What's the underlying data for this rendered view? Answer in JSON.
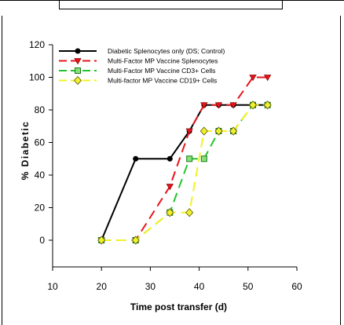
{
  "chart_data": {
    "type": "line",
    "xlabel": "Time post transfer (d)",
    "ylabel": "% Diabetic",
    "xlim": [
      10,
      60
    ],
    "ylim": [
      0,
      120
    ],
    "xticks": [
      10,
      20,
      30,
      40,
      50,
      60
    ],
    "yticks": [
      0,
      20,
      40,
      60,
      80,
      100,
      120
    ],
    "grid": false,
    "legend_position": "top-left",
    "series": [
      {
        "name": "Diabetic Splenocytes only (DS; Control)",
        "color": "#000000",
        "dash": "solid",
        "marker": "circle",
        "marker_fill": "#000000",
        "x": [
          20,
          27,
          34,
          38,
          41,
          44,
          47,
          51,
          54
        ],
        "y": [
          0,
          50,
          50,
          67,
          83,
          83,
          83,
          83,
          83
        ]
      },
      {
        "name": "Multi-Factor MP Vaccine Splenocytes",
        "color": "#e8141c",
        "dash": "dashed",
        "marker": "triangle-down",
        "marker_fill": "#e8141c",
        "x": [
          20,
          27,
          34,
          38,
          41,
          44,
          47,
          51,
          54
        ],
        "y": [
          0,
          0,
          33,
          67,
          83,
          83,
          83,
          100,
          100
        ]
      },
      {
        "name": "Multi-Factor MP Vaccine CD3+ Cells",
        "color": "#22c52a",
        "dash": "dashed",
        "marker": "square",
        "marker_fill": "#86e07a",
        "x": [
          20,
          27,
          34,
          38,
          41,
          44,
          47,
          51,
          54
        ],
        "y": [
          0,
          0,
          17,
          50,
          50,
          67,
          67,
          83,
          83
        ]
      },
      {
        "name": "Multi-factor MP Vaccine CD19+ Cells",
        "color": "#f2f220",
        "dash": "dashed",
        "marker": "diamond",
        "marker_fill": "#f0f030",
        "x": [
          20,
          27,
          34,
          38,
          41,
          44,
          47,
          51,
          54
        ],
        "y": [
          0,
          0,
          17,
          17,
          67,
          67,
          67,
          83,
          83
        ]
      }
    ]
  }
}
